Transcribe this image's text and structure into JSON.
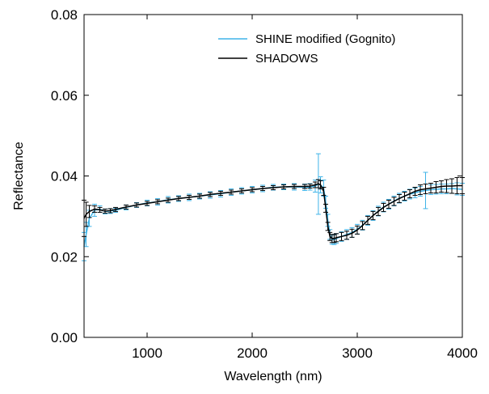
{
  "chart_data": {
    "type": "line",
    "xlabel": "Wavelength (nm)",
    "ylabel": "Reflectance",
    "xlim": [
      400,
      4000
    ],
    "ylim": [
      0.0,
      0.08
    ],
    "x_ticks": [
      1000,
      2000,
      3000,
      4000
    ],
    "x_tick_labels": [
      "1000",
      "2000",
      "3000",
      "4000"
    ],
    "y_ticks": [
      0.0,
      0.02,
      0.04,
      0.06,
      0.08
    ],
    "y_tick_labels": [
      "0.00",
      "0.02",
      "0.04",
      "0.06",
      "0.08"
    ],
    "grid": false,
    "legend_position": "top-right",
    "series": [
      {
        "name": "SHINE modified (Gognito)",
        "color": "#3fb4e8",
        "x": [
          400,
          420,
          450,
          500,
          550,
          600,
          650,
          700,
          800,
          900,
          1000,
          1100,
          1200,
          1300,
          1400,
          1500,
          1600,
          1700,
          1800,
          1900,
          2000,
          2100,
          2200,
          2300,
          2400,
          2500,
          2550,
          2600,
          2630,
          2650,
          2680,
          2700,
          2720,
          2740,
          2760,
          2780,
          2800,
          2850,
          2900,
          2950,
          3000,
          3050,
          3100,
          3150,
          3200,
          3250,
          3300,
          3350,
          3400,
          3450,
          3500,
          3550,
          3600,
          3650,
          3700,
          3750,
          3800,
          3850,
          3900,
          3950,
          4000
        ],
        "y": [
          0.0225,
          0.0255,
          0.0295,
          0.0315,
          0.0318,
          0.0312,
          0.0313,
          0.0315,
          0.0322,
          0.0328,
          0.0333,
          0.0336,
          0.0341,
          0.0344,
          0.0347,
          0.035,
          0.0353,
          0.0356,
          0.036,
          0.0363,
          0.0366,
          0.0369,
          0.0372,
          0.0373,
          0.0373,
          0.0372,
          0.0373,
          0.0375,
          0.038,
          0.0378,
          0.037,
          0.0335,
          0.029,
          0.0255,
          0.0243,
          0.0242,
          0.0245,
          0.025,
          0.0255,
          0.026,
          0.0268,
          0.0278,
          0.029,
          0.0302,
          0.0313,
          0.0323,
          0.033,
          0.0338,
          0.0345,
          0.035,
          0.0355,
          0.0358,
          0.0362,
          0.0364,
          0.0366,
          0.0367,
          0.0368,
          0.0368,
          0.0369,
          0.0368,
          0.0367
        ],
        "errors": [
          0.0035,
          0.003,
          0.002,
          0.0015,
          0.0008,
          0.0006,
          0.0006,
          0.0005,
          0.0006,
          0.0006,
          0.0007,
          0.0008,
          0.0008,
          0.0007,
          0.0008,
          0.0007,
          0.0008,
          0.0008,
          0.0008,
          0.0008,
          0.0008,
          0.0008,
          0.0007,
          0.0007,
          0.0008,
          0.0008,
          0.0008,
          0.0015,
          0.0075,
          0.002,
          0.002,
          0.0015,
          0.0015,
          0.0012,
          0.0012,
          0.0012,
          0.0012,
          0.0012,
          0.0012,
          0.0012,
          0.0012,
          0.0012,
          0.0012,
          0.0012,
          0.0012,
          0.0012,
          0.0012,
          0.0012,
          0.0012,
          0.0012,
          0.0012,
          0.0012,
          0.0012,
          0.0045,
          0.0012,
          0.0012,
          0.0012,
          0.0012,
          0.0012,
          0.0015,
          0.0015
        ]
      },
      {
        "name": "SHADOWS",
        "color": "#000000",
        "x": [
          400,
          420,
          450,
          500,
          550,
          600,
          650,
          700,
          800,
          900,
          1000,
          1100,
          1200,
          1300,
          1400,
          1500,
          1600,
          1700,
          1800,
          1900,
          2000,
          2100,
          2200,
          2300,
          2400,
          2500,
          2550,
          2600,
          2630,
          2650,
          2680,
          2700,
          2720,
          2740,
          2760,
          2780,
          2800,
          2850,
          2900,
          2950,
          3000,
          3050,
          3100,
          3150,
          3200,
          3250,
          3300,
          3350,
          3400,
          3450,
          3500,
          3550,
          3600,
          3650,
          3700,
          3750,
          3800,
          3850,
          3900,
          3950,
          4000
        ],
        "y": [
          0.0295,
          0.0305,
          0.0312,
          0.0318,
          0.0316,
          0.0313,
          0.0314,
          0.0317,
          0.0323,
          0.0328,
          0.0332,
          0.0336,
          0.034,
          0.0344,
          0.0347,
          0.035,
          0.0354,
          0.0357,
          0.036,
          0.0363,
          0.0366,
          0.0369,
          0.0371,
          0.0373,
          0.0374,
          0.0374,
          0.0375,
          0.0378,
          0.0381,
          0.0378,
          0.0362,
          0.032,
          0.0275,
          0.025,
          0.0245,
          0.0245,
          0.0247,
          0.025,
          0.0253,
          0.0258,
          0.0266,
          0.0277,
          0.029,
          0.0302,
          0.0312,
          0.0322,
          0.033,
          0.0337,
          0.0344,
          0.035,
          0.0356,
          0.0362,
          0.0366,
          0.0368,
          0.037,
          0.0372,
          0.0374,
          0.0375,
          0.0375,
          0.0376,
          0.0376
        ],
        "errors": [
          0.0045,
          0.003,
          0.0015,
          0.0008,
          0.0006,
          0.0005,
          0.0005,
          0.0005,
          0.0005,
          0.0005,
          0.0005,
          0.0005,
          0.0005,
          0.0005,
          0.0005,
          0.0005,
          0.0005,
          0.0005,
          0.0005,
          0.0005,
          0.0005,
          0.0005,
          0.0005,
          0.0005,
          0.0005,
          0.0005,
          0.0005,
          0.0007,
          0.001,
          0.001,
          0.001,
          0.001,
          0.001,
          0.001,
          0.001,
          0.001,
          0.001,
          0.001,
          0.001,
          0.001,
          0.001,
          0.001,
          0.001,
          0.001,
          0.001,
          0.001,
          0.001,
          0.001,
          0.001,
          0.001,
          0.001,
          0.001,
          0.0012,
          0.0012,
          0.0012,
          0.0014,
          0.0014,
          0.0016,
          0.0018,
          0.002,
          0.002
        ]
      }
    ]
  }
}
